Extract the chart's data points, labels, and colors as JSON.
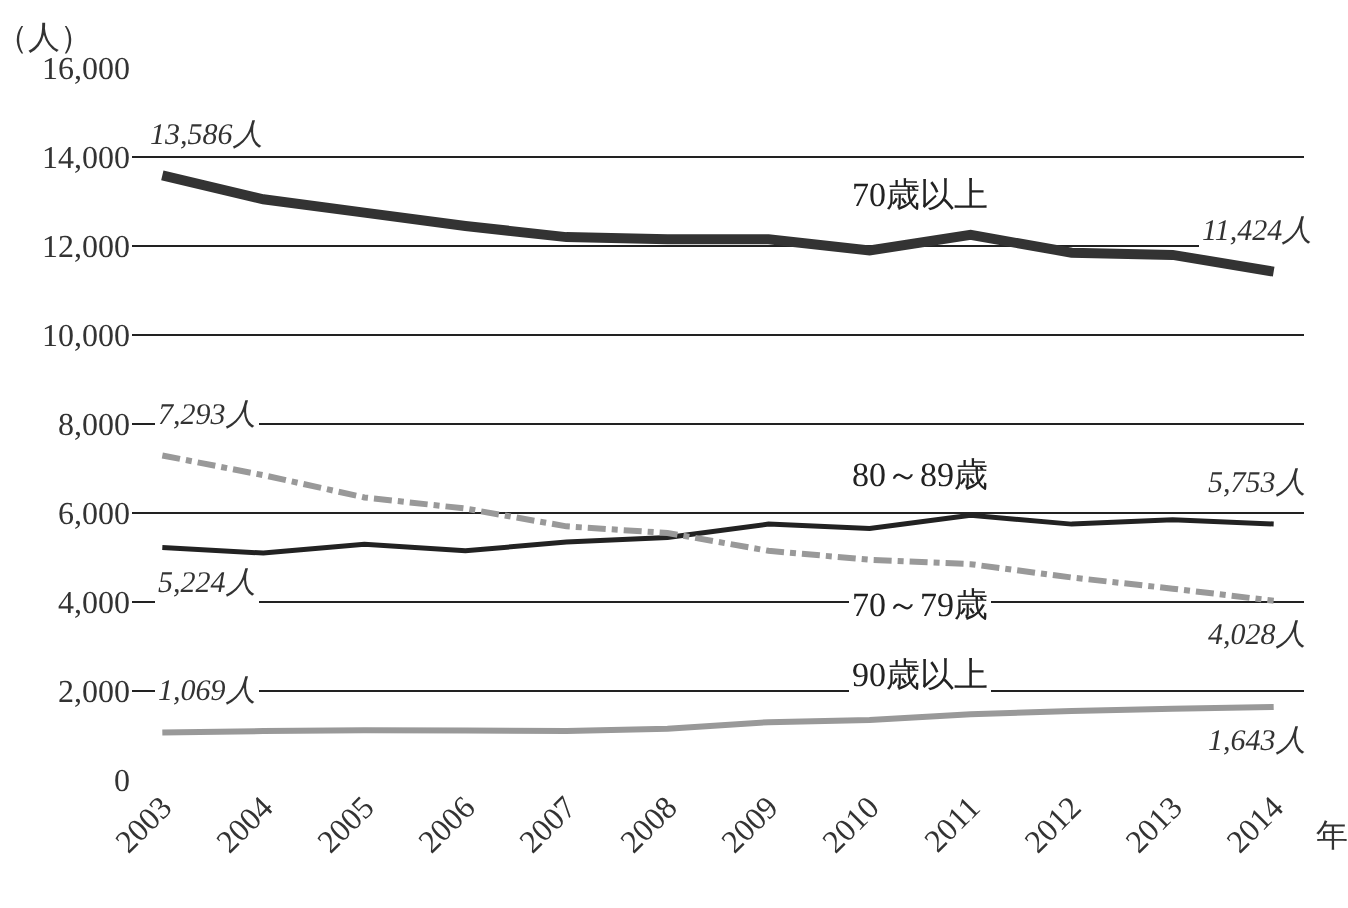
{
  "chart_data": {
    "type": "line",
    "ylabel": "（人）",
    "xlabel": "年",
    "categories": [
      "2003",
      "2004",
      "2005",
      "2006",
      "2007",
      "2008",
      "2009",
      "2010",
      "2011",
      "2012",
      "2013",
      "2014"
    ],
    "series": [
      {
        "name": "70歳以上",
        "color": "#333333",
        "line_style": "solid",
        "values": [
          13586,
          13050,
          12750,
          12450,
          12200,
          12150,
          12150,
          11900,
          12250,
          11850,
          11800,
          11424
        ],
        "value_labels": [
          "13,586人",
          null,
          null,
          null,
          null,
          null,
          null,
          null,
          null,
          null,
          null,
          "11,424人"
        ]
      },
      {
        "name": "80～89歳",
        "color": "#222222",
        "line_style": "solid",
        "values": [
          5224,
          5100,
          5300,
          5150,
          5350,
          5450,
          5750,
          5650,
          5950,
          5750,
          5850,
          5753
        ],
        "value_labels": [
          "5,224人",
          null,
          null,
          null,
          null,
          null,
          null,
          null,
          null,
          null,
          null,
          "5,753人"
        ]
      },
      {
        "name": "70～79歳",
        "color": "#999999",
        "line_style": "dashed",
        "values": [
          7293,
          6850,
          6350,
          6100,
          5700,
          5550,
          5150,
          4950,
          4850,
          4550,
          4300,
          4028
        ],
        "value_labels": [
          "7,293人",
          null,
          null,
          null,
          null,
          null,
          null,
          null,
          null,
          null,
          null,
          "4,028人"
        ]
      },
      {
        "name": "90歳以上",
        "color": "#999999",
        "line_style": "solid",
        "values": [
          1069,
          1100,
          1120,
          1110,
          1100,
          1150,
          1300,
          1350,
          1480,
          1550,
          1600,
          1643
        ],
        "value_labels": [
          "1,069人",
          null,
          null,
          null,
          null,
          null,
          null,
          null,
          null,
          null,
          null,
          "1,643人"
        ]
      }
    ],
    "ylim": [
      0,
      16000
    ],
    "yticks": [
      {
        "value": 0,
        "label": "0"
      },
      {
        "value": 2000,
        "label": "2,000"
      },
      {
        "value": 4000,
        "label": "4,000"
      },
      {
        "value": 6000,
        "label": "6,000"
      },
      {
        "value": 8000,
        "label": "8,000"
      },
      {
        "value": 10000,
        "label": "10,000"
      },
      {
        "value": 12000,
        "label": "12,000"
      },
      {
        "value": 14000,
        "label": "14,000"
      },
      {
        "value": 16000,
        "label": "16,000"
      }
    ],
    "grid": "y",
    "legend": false,
    "marker": "none"
  }
}
